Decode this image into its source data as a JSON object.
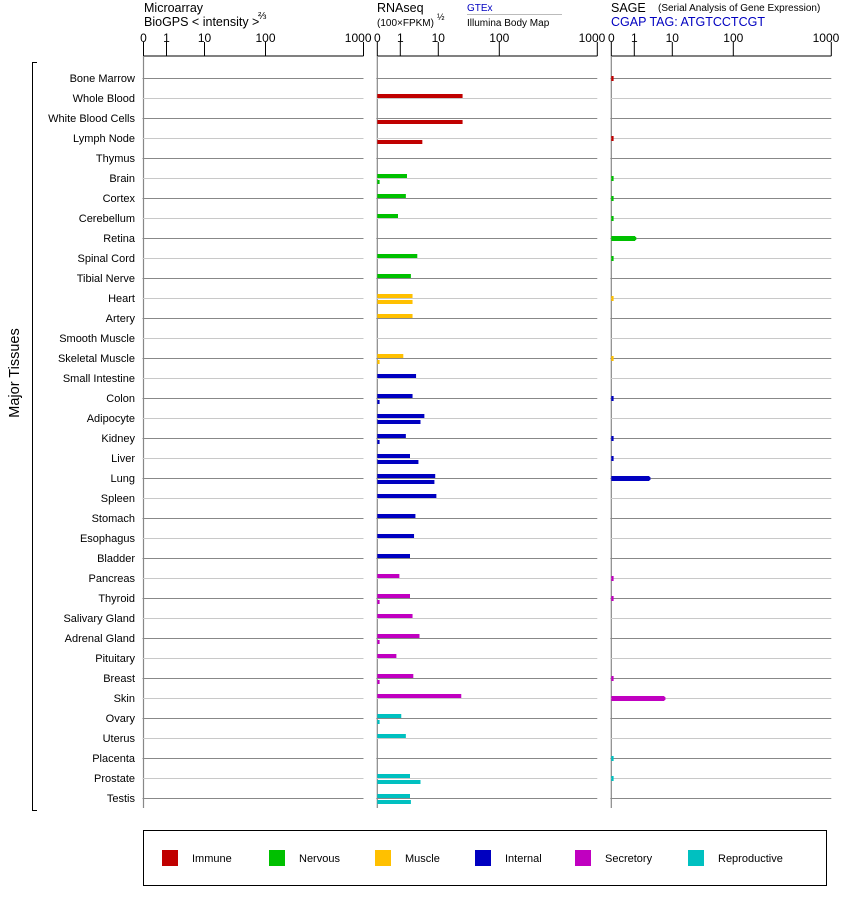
{
  "chart_data": {
    "type": "bar",
    "orientation": "horizontal",
    "y_group_label": "Major Tissues",
    "panels": [
      {
        "id": "microarray",
        "title": "Microarray",
        "subtitle": "BioGPS  < intensity >",
        "subtitle_sup": "⅔",
        "tick_labels": [
          "0",
          "1",
          "10",
          "100",
          "1000"
        ],
        "xlim": [
          0,
          1000
        ]
      },
      {
        "id": "rnaseq",
        "title": "RNAseq",
        "subtitle": "(100×FPKM)",
        "subtitle_sup": "½",
        "series": [
          {
            "name": "GTEx"
          },
          {
            "name": "Illumina Body Map"
          }
        ],
        "tick_labels": [
          "0",
          "1",
          "10",
          "100",
          "1000"
        ],
        "xlim": [
          0,
          1000
        ]
      },
      {
        "id": "sage",
        "title": "SAGE",
        "title_note": "(Serial Analysis of Gene Expression)",
        "subtitle": "CGAP TAG: ATGTCCTCGT",
        "tick_labels": [
          "0",
          "1",
          "10",
          "100",
          "1000"
        ],
        "xlim": [
          0,
          1000
        ]
      }
    ],
    "categories_legend": [
      {
        "name": "Immune",
        "color": "#c00000"
      },
      {
        "name": "Nervous",
        "color": "#00c000"
      },
      {
        "name": "Muscle",
        "color": "#ffc000"
      },
      {
        "name": "Internal",
        "color": "#0000c0"
      },
      {
        "name": "Secretory",
        "color": "#c000c0"
      },
      {
        "name": "Reproductive",
        "color": "#00c0c0"
      }
    ],
    "tissues": [
      {
        "name": "Bone Marrow",
        "cat": 0,
        "gtex": null,
        "illumina": null,
        "sage": 0.1
      },
      {
        "name": "Whole Blood",
        "cat": 0,
        "gtex": 25,
        "illumina": null,
        "sage": null
      },
      {
        "name": "White Blood Cells",
        "cat": 0,
        "gtex": null,
        "illumina": 25,
        "sage": null
      },
      {
        "name": "Lymph Node",
        "cat": 0,
        "gtex": null,
        "illumina": 3.8,
        "sage": 0.1
      },
      {
        "name": "Thymus",
        "cat": 0,
        "gtex": null,
        "illumina": null,
        "sage": null
      },
      {
        "name": "Brain",
        "cat": 1,
        "gtex": 1.5,
        "illumina": 0.1,
        "sage": 0.1
      },
      {
        "name": "Cortex",
        "cat": 1,
        "gtex": 1.4,
        "illumina": null,
        "sage": 0.1
      },
      {
        "name": "Cerebellum",
        "cat": 1,
        "gtex": 0.9,
        "illumina": null,
        "sage": 0.1
      },
      {
        "name": "Retina",
        "cat": 1,
        "gtex": null,
        "illumina": null,
        "sage": 1.06
      },
      {
        "name": "Spinal Cord",
        "cat": 1,
        "gtex": 2.8,
        "illumina": null,
        "sage": 0.1
      },
      {
        "name": "Tibial Nerve",
        "cat": 1,
        "gtex": 1.9,
        "illumina": null,
        "sage": null
      },
      {
        "name": "Heart",
        "cat": 2,
        "gtex": 2.1,
        "illumina": 2.1,
        "sage": 0.1
      },
      {
        "name": "Artery",
        "cat": 2,
        "gtex": 2.1,
        "illumina": null,
        "sage": null
      },
      {
        "name": "Smooth Muscle",
        "cat": 2,
        "gtex": null,
        "illumina": null,
        "sage": null
      },
      {
        "name": "Skeletal Muscle",
        "cat": 2,
        "gtex": 1.2,
        "illumina": 0.1,
        "sage": 0.1
      },
      {
        "name": "Small Intestine",
        "cat": 3,
        "gtex": 2.6,
        "illumina": null,
        "sage": null
      },
      {
        "name": "Colon",
        "cat": 3,
        "gtex": 2.1,
        "illumina": 0.1,
        "sage": 0.1
      },
      {
        "name": "Adipocyte",
        "cat": 3,
        "gtex": 4.3,
        "illumina": 3.4,
        "sage": null
      },
      {
        "name": "Kidney",
        "cat": 3,
        "gtex": 1.4,
        "illumina": 0.1,
        "sage": 0.1
      },
      {
        "name": "Liver",
        "cat": 3,
        "gtex": 1.8,
        "illumina": 3.0,
        "sage": 0.1
      },
      {
        "name": "Lung",
        "cat": 3,
        "gtex": 8.3,
        "illumina": 7.9,
        "sage": 2.5
      },
      {
        "name": "Spleen",
        "cat": 3,
        "gtex": 8.9,
        "illumina": null,
        "sage": null
      },
      {
        "name": "Stomach",
        "cat": 3,
        "gtex": 2.5,
        "illumina": null,
        "sage": null
      },
      {
        "name": "Esophagus",
        "cat": 3,
        "gtex": 2.3,
        "illumina": null,
        "sage": null
      },
      {
        "name": "Bladder",
        "cat": 3,
        "gtex": 1.8,
        "illumina": null,
        "sage": null
      },
      {
        "name": "Pancreas",
        "cat": 4,
        "gtex": 0.96,
        "illumina": null,
        "sage": 0.1
      },
      {
        "name": "Thyroid",
        "cat": 4,
        "gtex": 1.8,
        "illumina": 0.1,
        "sage": 0.1
      },
      {
        "name": "Salivary Gland",
        "cat": 4,
        "gtex": 2.1,
        "illumina": null,
        "sage": null
      },
      {
        "name": "Adrenal Gland",
        "cat": 4,
        "gtex": 3.2,
        "illumina": 0.1,
        "sage": null
      },
      {
        "name": "Pituitary",
        "cat": 4,
        "gtex": 0.83,
        "illumina": null,
        "sage": null
      },
      {
        "name": "Breast",
        "cat": 4,
        "gtex": 2.2,
        "illumina": 0.1,
        "sage": 0.1
      },
      {
        "name": "Skin",
        "cat": 4,
        "gtex": 23.8,
        "illumina": null,
        "sage": 6.2
      },
      {
        "name": "Ovary",
        "cat": 5,
        "gtex": 1.06,
        "illumina": 0.1,
        "sage": null
      },
      {
        "name": "Uterus",
        "cat": 5,
        "gtex": 1.4,
        "illumina": null,
        "sage": null
      },
      {
        "name": "Placenta",
        "cat": 5,
        "gtex": null,
        "illumina": null,
        "sage": 0.1
      },
      {
        "name": "Prostate",
        "cat": 5,
        "gtex": 1.8,
        "illumina": 3.4,
        "sage": 0.1
      },
      {
        "name": "Testis",
        "cat": 5,
        "gtex": 1.8,
        "illumina": 1.9,
        "sage": null
      }
    ]
  }
}
